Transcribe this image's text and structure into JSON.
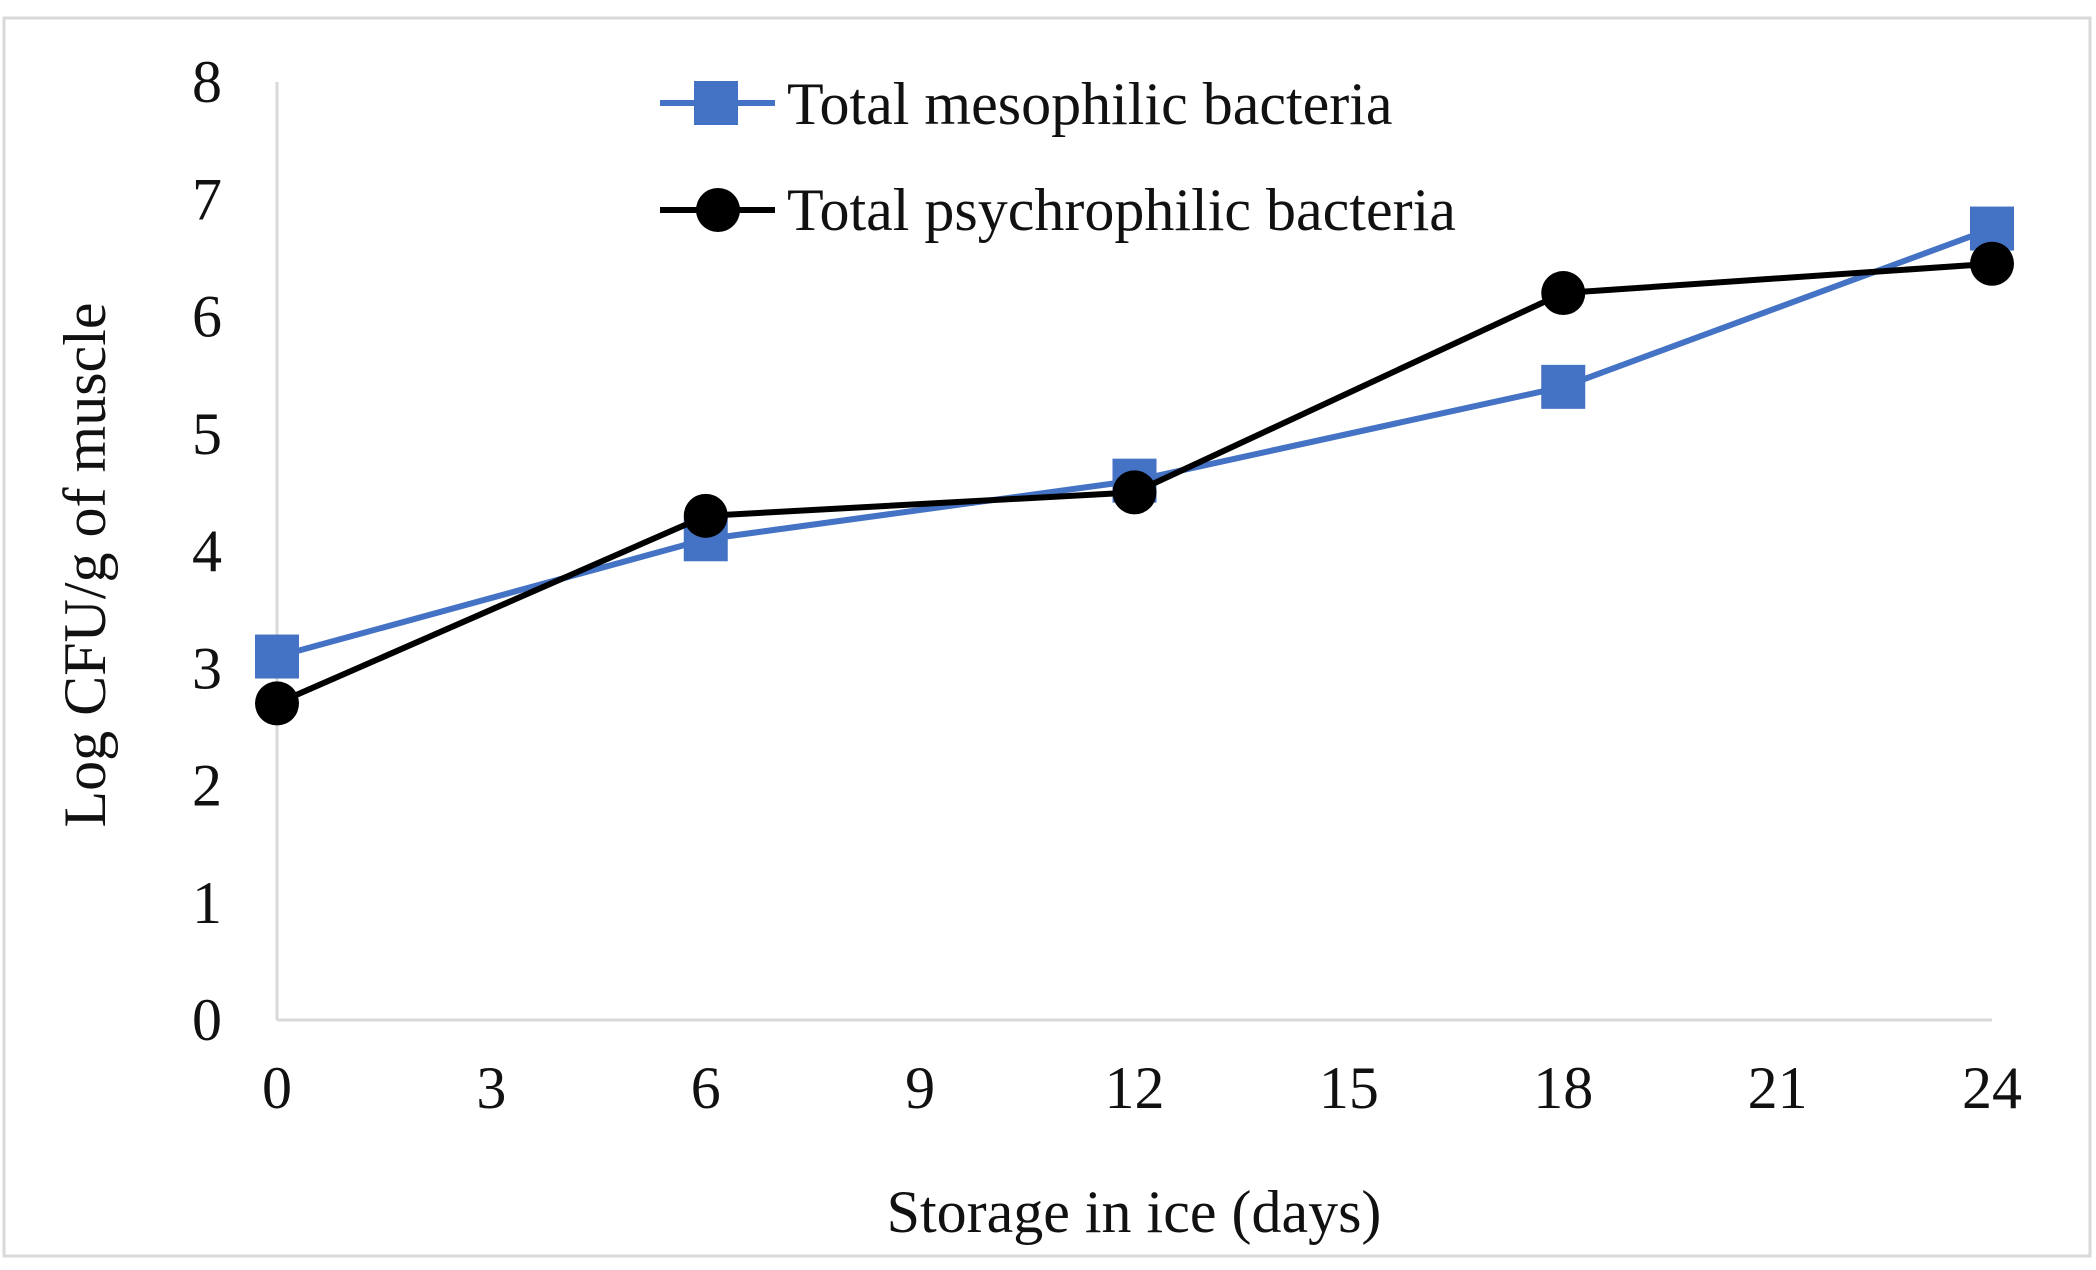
{
  "chart_data": {
    "type": "line",
    "title": "",
    "xlabel": "Storage in ice (days)",
    "ylabel": "Log CFU/g of muscle",
    "x": [
      0,
      6,
      12,
      18,
      24
    ],
    "xticks": [
      0,
      3,
      6,
      9,
      12,
      15,
      18,
      21,
      24
    ],
    "yticks": [
      0,
      1,
      2,
      3,
      4,
      5,
      6,
      7,
      8
    ],
    "xlim": [
      0,
      24
    ],
    "ylim": [
      0,
      8
    ],
    "grid": false,
    "legend_position": "top-center",
    "series": [
      {
        "name": "Total mesophilic bacteria",
        "values": [
          3.1,
          4.1,
          4.6,
          5.4,
          6.75
        ],
        "color": "#4472c4",
        "marker": "square"
      },
      {
        "name": "Total psychrophilic bacteria",
        "values": [
          2.7,
          4.3,
          4.5,
          6.2,
          6.45
        ],
        "color": "#000000",
        "marker": "circle"
      }
    ]
  }
}
